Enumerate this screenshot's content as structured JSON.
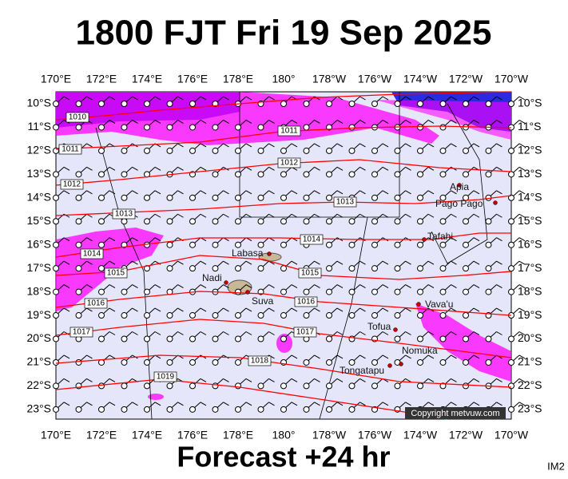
{
  "header": {
    "title": "1800 FJT Fri 19 Sep 2025"
  },
  "map": {
    "lon_labels": [
      "170°E",
      "172°E",
      "174°E",
      "176°E",
      "178°E",
      "180°",
      "178°W",
      "176°W",
      "174°W",
      "172°W",
      "170°W"
    ],
    "lat_labels": [
      "10°S",
      "11°S",
      "12°S",
      "13°S",
      "14°S",
      "15°S",
      "16°S",
      "17°S",
      "18°S",
      "19°S",
      "20°S",
      "21°S",
      "22°S",
      "23°S"
    ],
    "isobar_labels": [
      1010,
      1011,
      1011,
      1012,
      1012,
      1013,
      1013,
      1014,
      1014,
      1015,
      1015,
      1016,
      1016,
      1017,
      1017,
      1018,
      1019
    ],
    "places": [
      "Apia",
      "Pago Pago",
      "Tafahi",
      "Labasa",
      "Nadi",
      "Suva",
      "Vava'u",
      "Tofua",
      "Nomuka",
      "Tongatapu"
    ],
    "copyright": "Copyright metvuw.com"
  },
  "footer": {
    "text": "Forecast +24 hr",
    "corner": "IM2"
  }
}
